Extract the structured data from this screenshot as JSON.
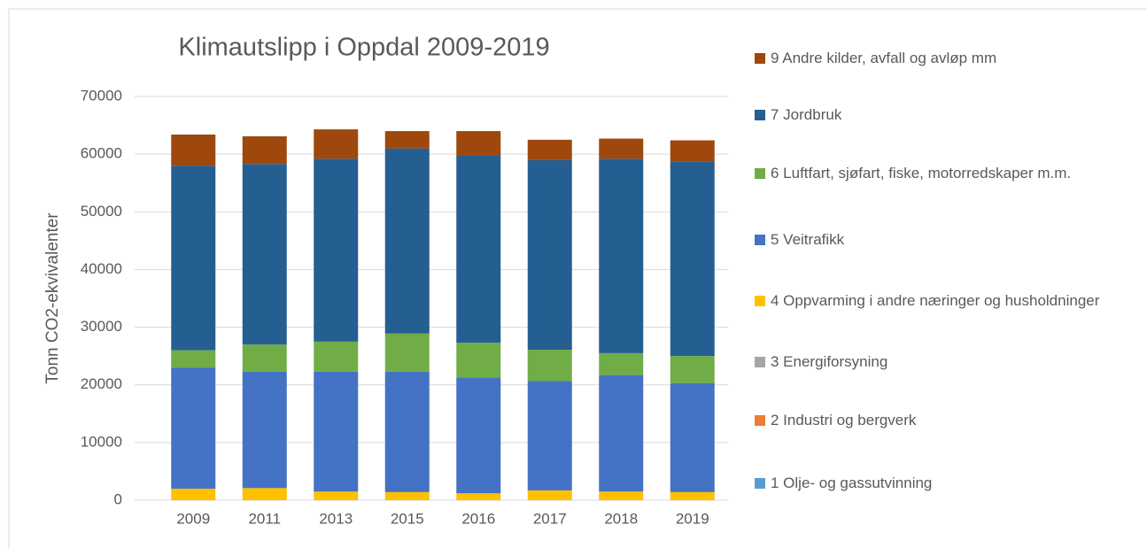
{
  "chart_data": {
    "type": "stacked_bar",
    "title": "Klimautslipp i Oppdal 2009-2019",
    "y_label": "Tonn CO2-ekvivalenter",
    "categories": [
      "2009",
      "2011",
      "2013",
      "2015",
      "2016",
      "2017",
      "2018",
      "2019"
    ],
    "series": [
      {
        "name": "1 Olje- og gassutvinning",
        "color": "#5b9bd5",
        "values": [
          0,
          0,
          0,
          0,
          0,
          0,
          0,
          0
        ]
      },
      {
        "name": "2 Industri og bergverk",
        "color": "#ed7d31",
        "values": [
          0,
          0,
          0,
          0,
          0,
          0,
          0,
          0
        ]
      },
      {
        "name": "3 Energiforsyning",
        "color": "#a5a5a5",
        "values": [
          0,
          0,
          0,
          0,
          0,
          0,
          0,
          0
        ]
      },
      {
        "name": "4 Oppvarming i andre næringer og husholdninger",
        "color": "#ffc000",
        "values": [
          2000,
          2100,
          1500,
          1400,
          1200,
          1700,
          1500,
          1400
        ]
      },
      {
        "name": "5 Veitrafikk",
        "color": "#4472c4",
        "values": [
          21000,
          20200,
          20800,
          20900,
          20100,
          19000,
          20200,
          18900
        ]
      },
      {
        "name": "6 Luftfart, sjøfart, fiske, motorredskaper m.m.",
        "color": "#70ad47",
        "values": [
          3000,
          4700,
          5200,
          6600,
          6000,
          5400,
          3800,
          4700
        ]
      },
      {
        "name": "7 Jordbruk",
        "color": "#255e91",
        "values": [
          32000,
          31300,
          31700,
          32100,
          32500,
          32900,
          33700,
          33700
        ]
      },
      {
        "name": "9 Andre kilder, avfall og avløp mm",
        "color": "#9e480e",
        "values": [
          5400,
          4800,
          5100,
          3000,
          4200,
          3500,
          3500,
          3700
        ]
      }
    ],
    "ylim": [
      0,
      70000
    ],
    "yticks": [
      0,
      10000,
      20000,
      30000,
      40000,
      50000,
      60000,
      70000
    ],
    "grid": true
  }
}
